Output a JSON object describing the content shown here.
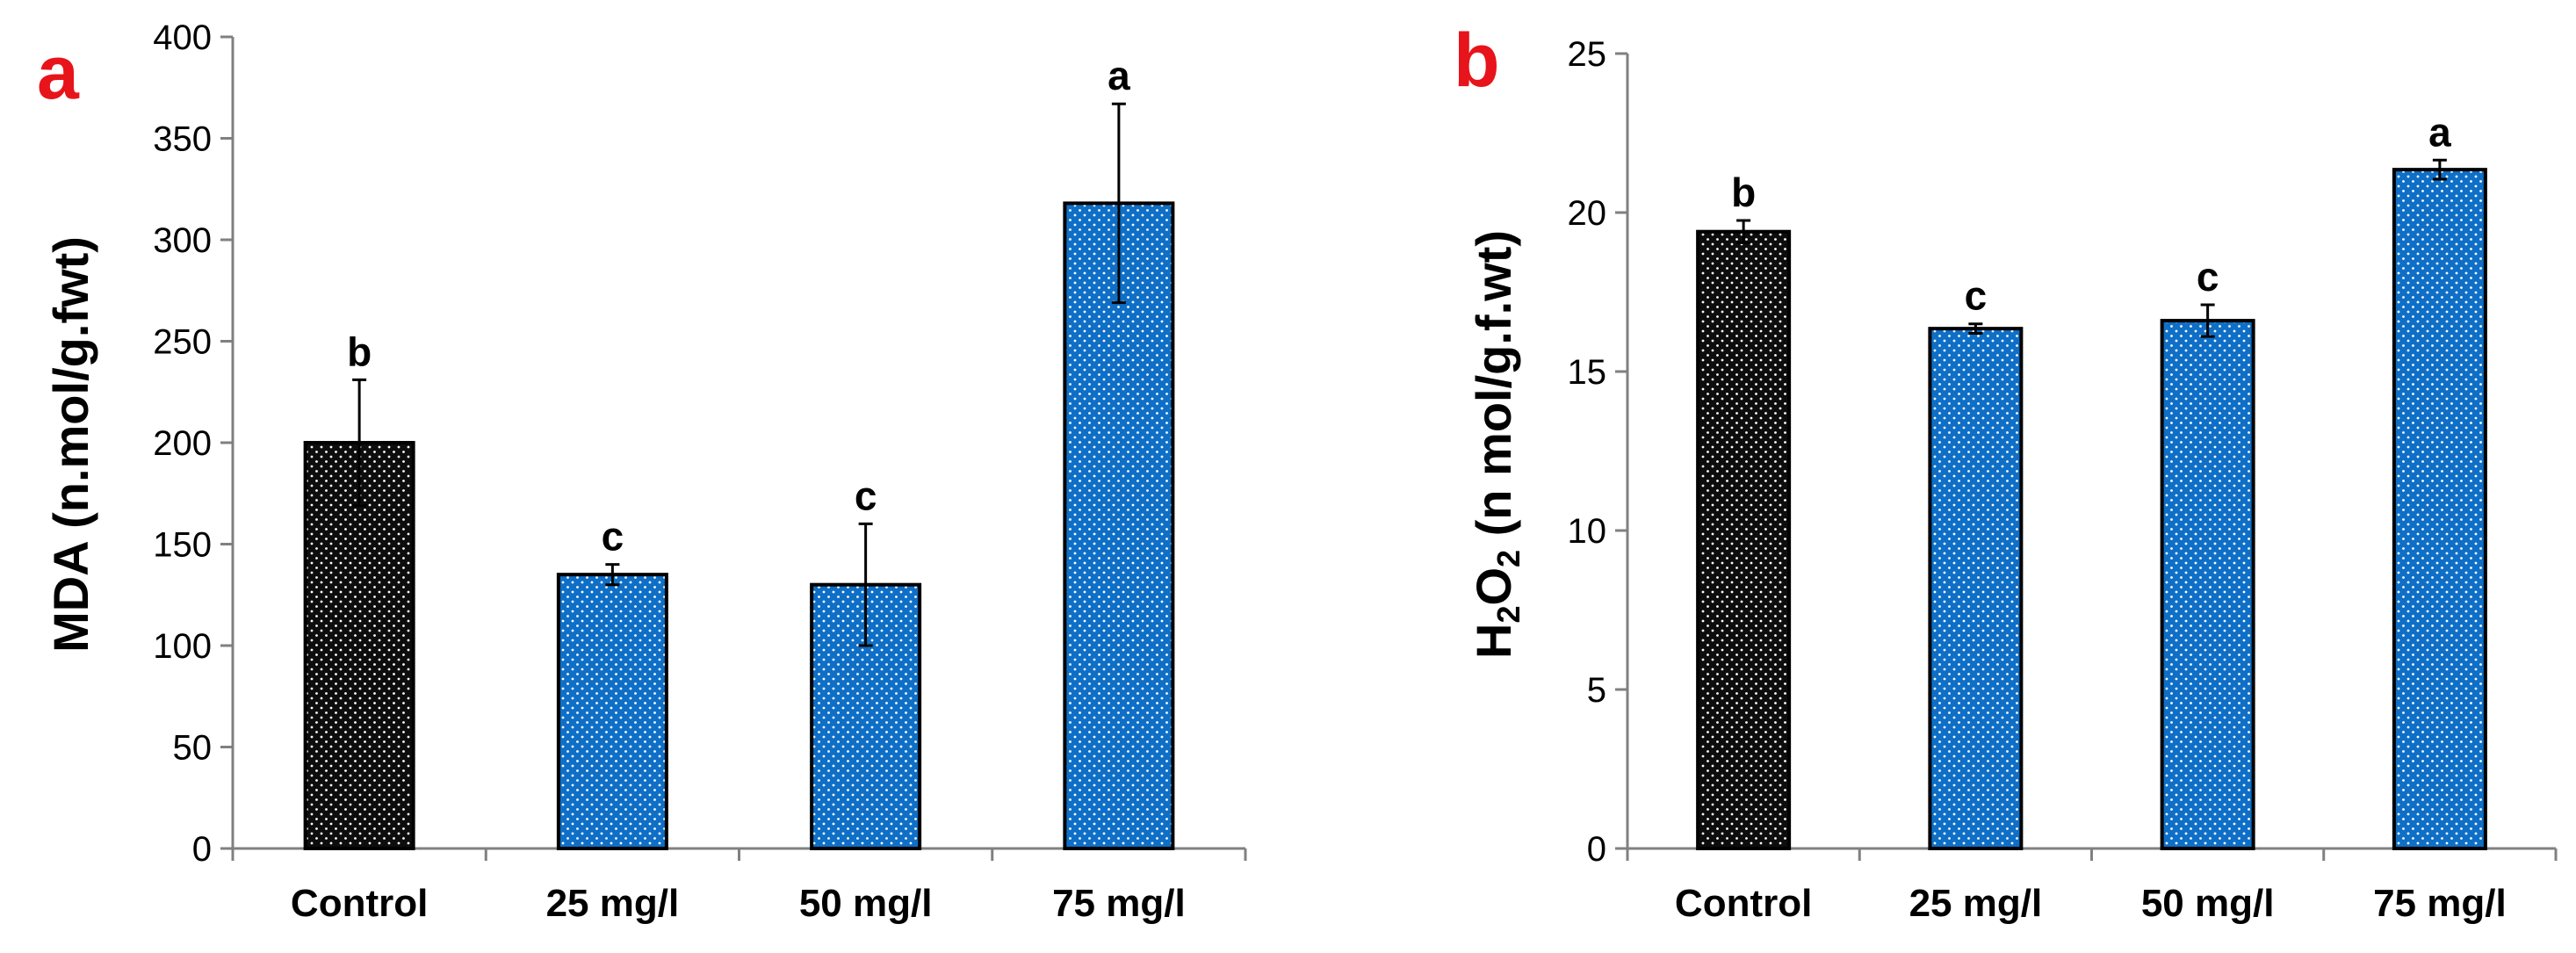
{
  "colors": {
    "control": "#0d0d0d",
    "treatment": "#0f6fc6",
    "dot": "#ffffff",
    "letter": "#e8141b",
    "axis": "#808080"
  },
  "chart_data": [
    {
      "type": "bar",
      "panel_label": "a",
      "categories": [
        "Control",
        "25 mg/l",
        "50 mg/l",
        "75 mg/l"
      ],
      "values": [
        200,
        135,
        130,
        318
      ],
      "errors": [
        31,
        5,
        30,
        49
      ],
      "significance": [
        "b",
        "c",
        "c",
        "a"
      ],
      "bar_colors": [
        "#0d0d0d",
        "#0f6fc6",
        "#0f6fc6",
        "#0f6fc6"
      ],
      "xlabel": "",
      "ylabel": "MDA (n.mol/g.fwt)",
      "ylim": [
        0,
        400
      ],
      "yticks": [
        "0",
        "50",
        "100",
        "150",
        "200",
        "250",
        "300",
        "350",
        "400"
      ],
      "grid": false
    },
    {
      "type": "bar",
      "panel_label": "b",
      "categories": [
        "Control",
        "25 mg/l",
        "50 mg/l",
        "75 mg/l"
      ],
      "values": [
        19.4,
        16.35,
        16.6,
        21.35
      ],
      "errors": [
        0.35,
        0.15,
        0.5,
        0.3
      ],
      "significance": [
        "b",
        "c",
        "c",
        "a"
      ],
      "bar_colors": [
        "#0d0d0d",
        "#0f6fc6",
        "#0f6fc6",
        "#0f6fc6"
      ],
      "xlabel": "",
      "ylabel_parts": [
        "H",
        "2",
        "O",
        "2",
        " (n mol/g.f.wt)"
      ],
      "ylim": [
        0,
        25
      ],
      "yticks": [
        "0",
        "5",
        "10",
        "15",
        "20",
        "25"
      ],
      "grid": false
    }
  ]
}
